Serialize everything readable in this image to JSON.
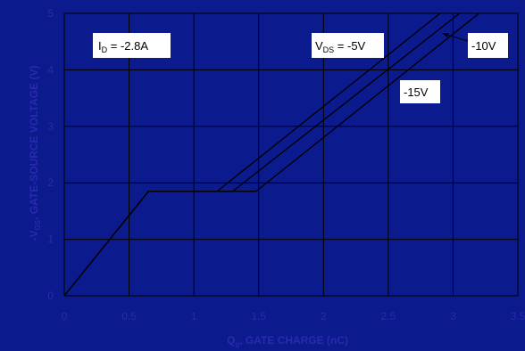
{
  "colors": {
    "background": "#0b1a8c",
    "plot_area": "#0b1a8c",
    "grid": "#000000",
    "curve": "#000000",
    "tick_text": "#2a2ab0",
    "label_box": "#ffffff"
  },
  "chart_data": {
    "type": "line",
    "xlabel_main": "Q",
    "xlabel_sub": "g",
    "xlabel_rest": ", GATE CHARGE (nC)",
    "ylabel_main": "-V",
    "ylabel_sub": "GS",
    "ylabel_rest": ", GATE-SOURCE VOLTAGE (V)",
    "xlim": [
      0,
      3.5
    ],
    "ylim": [
      0,
      5
    ],
    "x_ticks": [
      "0",
      "0.5",
      "1",
      "1.5",
      "2",
      "2.5",
      "3",
      "3.5"
    ],
    "y_ticks": [
      "0",
      "1",
      "2",
      "3",
      "4",
      "5"
    ],
    "grid": true,
    "series": [
      {
        "name": "-5V",
        "x": [
          0,
          0.65,
          1.18,
          2.9
        ],
        "y": [
          0,
          1.85,
          1.85,
          5
        ]
      },
      {
        "name": "-10V",
        "x": [
          0,
          0.65,
          1.3,
          3.05
        ],
        "y": [
          0,
          1.85,
          1.85,
          5
        ]
      },
      {
        "name": "-15V",
        "x": [
          0,
          0.65,
          1.48,
          3.2
        ],
        "y": [
          0,
          1.85,
          1.85,
          5
        ]
      }
    ],
    "annotations": {
      "id_main": "I",
      "id_sub": "D",
      "id_rest": " = -2.8A",
      "vds_main": "V",
      "vds_sub": "DS",
      "vds_rest": " = -5V",
      "v10": "-10V",
      "v15": "-15V"
    }
  }
}
